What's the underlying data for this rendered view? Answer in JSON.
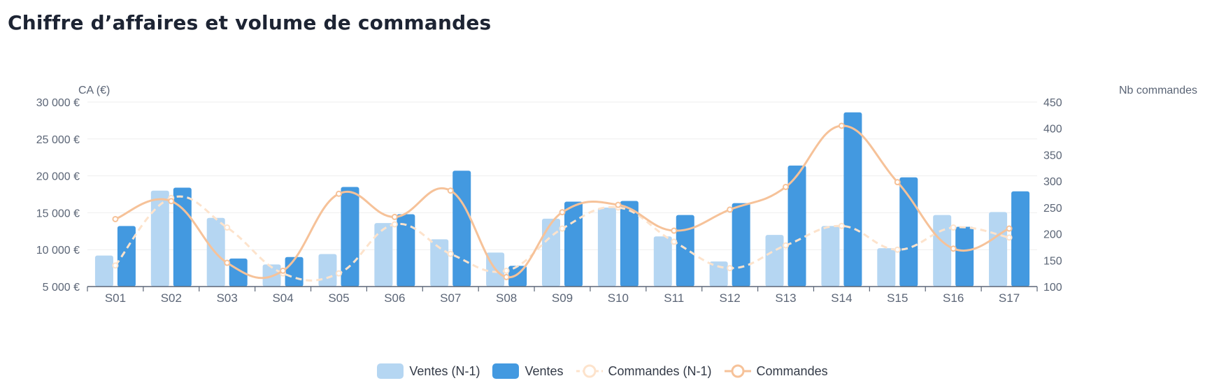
{
  "title": "Chiffre d’affaires et volume de commandes",
  "colors": {
    "ventes_n1": "#b5d6f2",
    "ventes": "#4399e0",
    "commandes_n1": "#fde3cc",
    "commandes": "#f6c299",
    "axis": "#5b6576",
    "grid": "#eeeeee"
  },
  "chart_data": {
    "type": "bar",
    "categories": [
      "S01",
      "S02",
      "S03",
      "S04",
      "S05",
      "S06",
      "S07",
      "S08",
      "S09",
      "S10",
      "S11",
      "S12",
      "S13",
      "S14",
      "S15",
      "S16",
      "S17"
    ],
    "y_left": {
      "label": "CA (€)",
      "min": 5000,
      "max": 30000,
      "ticks": [
        5000,
        10000,
        15000,
        20000,
        25000,
        30000
      ],
      "tick_labels": [
        "5 000 €",
        "10 000 €",
        "15 000 €",
        "20 000 €",
        "25 000 €",
        "30 000 €"
      ]
    },
    "y_right": {
      "label": "Nb commandes",
      "min": 100,
      "max": 450,
      "ticks": [
        100,
        150,
        200,
        250,
        300,
        350,
        400,
        450
      ],
      "tick_labels": [
        "100",
        "150",
        "200",
        "250",
        "300",
        "350",
        "400",
        "450"
      ]
    },
    "series": [
      {
        "name": "Ventes (N-1)",
        "type": "bar",
        "axis": "left",
        "values": [
          9200,
          18000,
          14300,
          8000,
          9400,
          13600,
          11400,
          9600,
          14200,
          15700,
          11800,
          8400,
          12000,
          13200,
          10200,
          14700,
          15100
        ]
      },
      {
        "name": "Ventes",
        "type": "bar",
        "axis": "left",
        "values": [
          13200,
          18400,
          8800,
          9000,
          18500,
          14800,
          20700,
          7800,
          16500,
          16600,
          14700,
          16300,
          21400,
          28600,
          19800,
          13100,
          17900
        ]
      },
      {
        "name": "Commandes (N-1)",
        "type": "line",
        "style": "dashed",
        "axis": "right",
        "values": [
          140,
          268,
          212,
          125,
          125,
          218,
          162,
          130,
          210,
          250,
          185,
          135,
          178,
          215,
          170,
          212,
          193
        ]
      },
      {
        "name": "Commandes",
        "type": "line",
        "style": "solid",
        "axis": "right",
        "values": [
          228,
          262,
          145,
          130,
          276,
          232,
          282,
          118,
          241,
          255,
          206,
          246,
          289,
          405,
          298,
          172,
          210
        ]
      }
    ],
    "grid": true,
    "legend_position": "bottom-center"
  }
}
